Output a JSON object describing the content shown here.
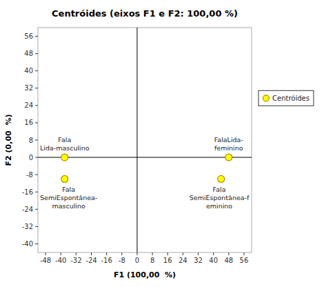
{
  "chart_data": {
    "type": "scatter",
    "title": "Centróides (eixos F1 e F2: 100,00 %)",
    "xlabel": "F1 (100,00  %)",
    "ylabel": "F2 (0,00  %)",
    "xlim": [
      -52,
      60
    ],
    "ylim": [
      -44,
      60
    ],
    "xticks": [
      -48,
      -40,
      -32,
      -24,
      -16,
      -8,
      0,
      8,
      16,
      24,
      32,
      40,
      48,
      56
    ],
    "yticks": [
      -40,
      -32,
      -24,
      -16,
      -8,
      0,
      8,
      16,
      24,
      32,
      40,
      48,
      56
    ],
    "legend": "right",
    "series": [
      {
        "name": "Centróides",
        "color": "#FFFF00",
        "x": [
          -38,
          48,
          -38,
          44
        ],
        "values": [
          0,
          0,
          -10,
          -10
        ],
        "labels": [
          "Fala\nLida-masculino",
          "FalaLida-\nfeminino",
          "Fala\nSemiEspontânea-\nmasculino",
          "Fala\nSemiEspontânea-f\neminino"
        ]
      }
    ]
  }
}
